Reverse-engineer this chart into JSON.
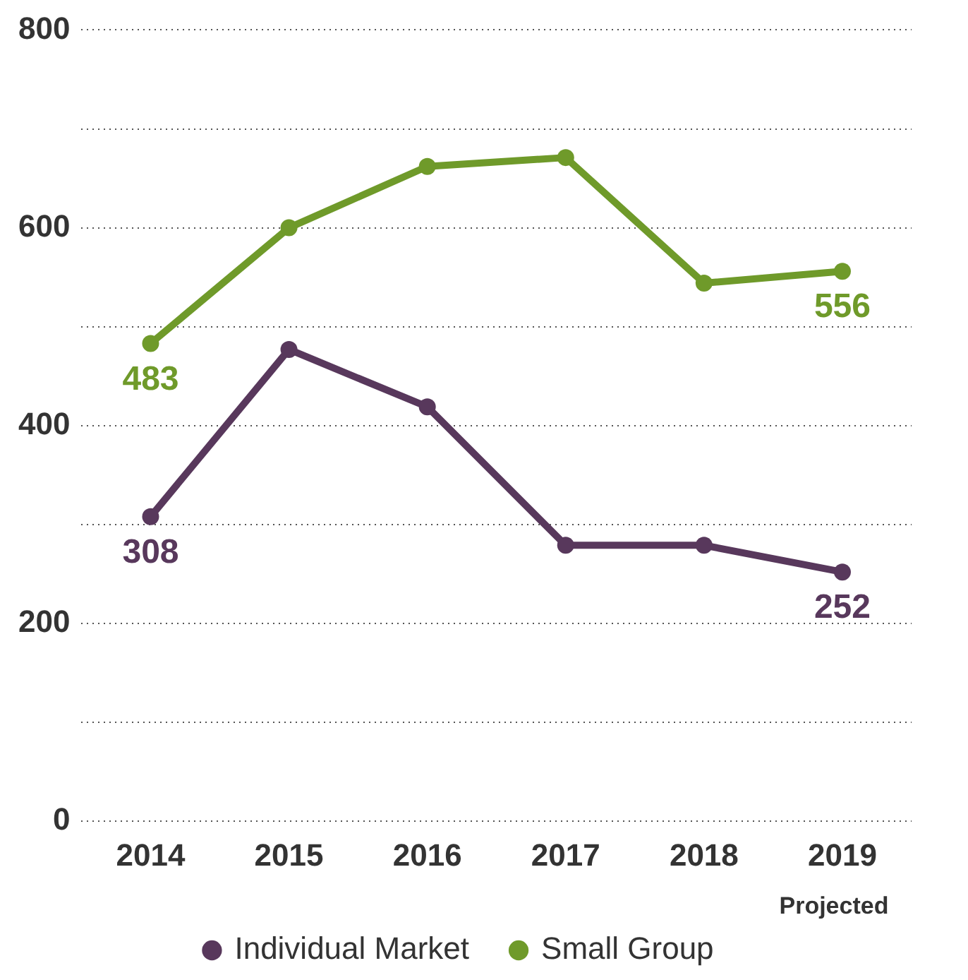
{
  "chart_data": {
    "type": "line",
    "categories": [
      "2014",
      "2015",
      "2016",
      "2017",
      "2018",
      "2019"
    ],
    "series": [
      {
        "name": "Individual Market",
        "color": "#58385c",
        "values": [
          308,
          477,
          419,
          279,
          279,
          252
        ],
        "value_labels": [
          "308",
          null,
          null,
          null,
          null,
          "252"
        ]
      },
      {
        "name": "Small Group",
        "color": "#6f9a2a",
        "values": [
          483,
          600,
          662,
          671,
          544,
          556
        ],
        "value_labels": [
          "483",
          null,
          null,
          null,
          null,
          "556"
        ]
      }
    ],
    "ylim": [
      0,
      800
    ],
    "yticks": [
      0,
      {
        "value": 100,
        "label": null
      },
      200,
      {
        "value": 300,
        "label": null
      },
      400,
      {
        "value": 500,
        "label": null
      },
      600,
      {
        "value": 700,
        "label": null
      },
      800
    ],
    "grid": "y",
    "legend": "bottom",
    "marker": "circle",
    "line_style": "solid",
    "annotations": [
      "Projected"
    ]
  }
}
